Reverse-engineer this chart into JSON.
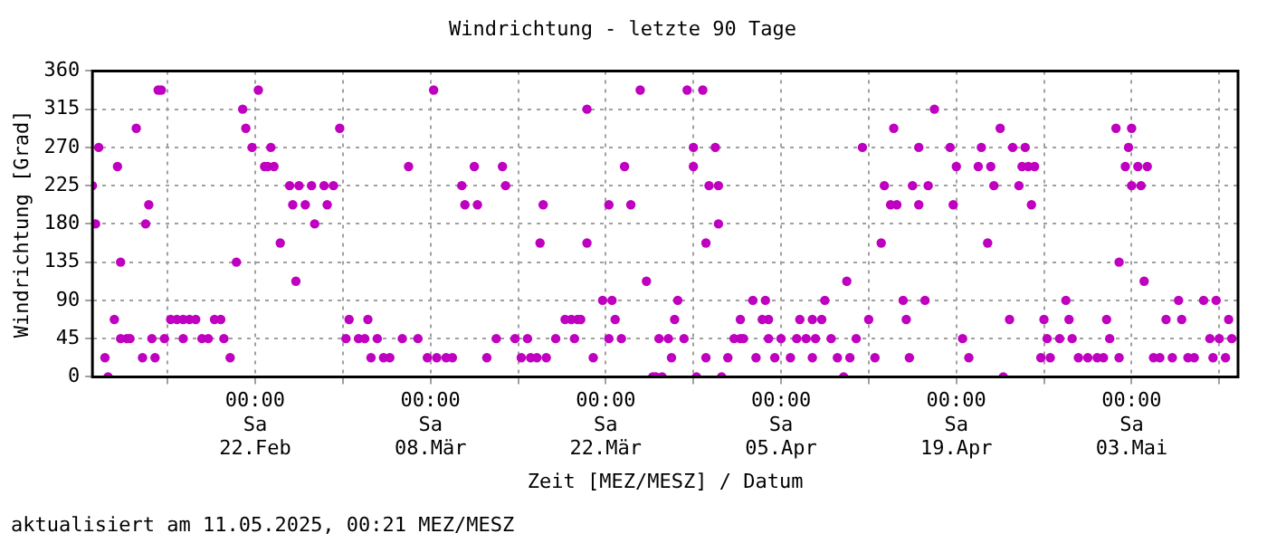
{
  "chart_data": {
    "type": "scatter",
    "title": "Windrichtung - letzte 90 Tage",
    "xlabel": "Zeit [MEZ/MESZ] / Datum",
    "ylabel": "Windrichtung [Grad]",
    "annotations": [
      "aktualisiert am 11.05.2025, 00:21 MEZ/MESZ"
    ],
    "x": [
      "2025-02-09T00:00",
      "2025-02-09T06:00",
      "2025-02-09T12:00",
      "2025-02-10T00:00",
      "2025-02-10T06:00",
      "2025-02-10T18:00",
      "2025-02-11T00:00",
      "2025-02-11T06:00",
      "2025-02-11T06:00",
      "2025-02-11T18:00",
      "2025-02-12T00:00",
      "2025-02-12T12:00",
      "2025-02-13T00:00",
      "2025-02-13T06:00",
      "2025-02-13T12:00",
      "2025-02-13T18:00",
      "2025-02-14T00:00",
      "2025-02-14T06:00",
      "2025-02-14T12:00",
      "2025-02-14T18:00",
      "2025-02-15T06:00",
      "2025-02-15T18:00",
      "2025-02-16T06:00",
      "2025-02-16T06:00",
      "2025-02-16T18:00",
      "2025-02-17T06:00",
      "2025-02-17T18:00",
      "2025-02-18T06:00",
      "2025-02-18T18:00",
      "2025-02-19T06:00",
      "2025-02-19T12:00",
      "2025-02-20T00:00",
      "2025-02-20T12:00",
      "2025-02-21T00:00",
      "2025-02-21T06:00",
      "2025-02-21T18:00",
      "2025-02-22T06:00",
      "2025-02-22T18:00",
      "2025-02-23T00:00",
      "2025-02-23T06:00",
      "2025-02-23T12:00",
      "2025-02-24T00:00",
      "2025-02-24T18:00",
      "2025-02-25T00:00",
      "2025-02-25T06:00",
      "2025-02-25T12:00",
      "2025-02-26T00:00",
      "2025-02-26T12:00",
      "2025-02-26T18:00",
      "2025-02-27T12:00",
      "2025-02-27T18:00",
      "2025-02-28T06:00",
      "2025-02-28T18:00",
      "2025-03-01T06:00",
      "2025-03-01T12:00",
      "2025-03-02T06:00",
      "2025-03-02T18:00",
      "2025-03-03T00:00",
      "2025-03-03T06:00",
      "2025-03-03T18:00",
      "2025-03-04T06:00",
      "2025-03-04T18:00",
      "2025-03-05T18:00",
      "2025-03-06T06:00",
      "2025-03-07T00:00",
      "2025-03-07T18:00",
      "2025-03-08T06:00",
      "2025-03-08T12:00",
      "2025-03-09T06:00",
      "2025-03-09T18:00",
      "2025-03-10T12:00",
      "2025-03-10T18:00",
      "2025-03-11T12:00",
      "2025-03-11T18:00",
      "2025-03-12T12:00",
      "2025-03-13T06:00",
      "2025-03-13T18:00",
      "2025-03-14T00:00",
      "2025-03-14T18:00",
      "2025-03-15T06:00",
      "2025-03-15T18:00",
      "2025-03-16T00:00",
      "2025-03-16T12:00",
      "2025-03-16T18:00",
      "2025-03-17T00:00",
      "2025-03-17T06:00",
      "2025-03-18T00:00",
      "2025-03-18T18:00",
      "2025-03-19T06:00",
      "2025-03-19T12:00",
      "2025-03-19T18:00",
      "2025-03-20T00:00",
      "2025-03-20T12:00",
      "2025-03-20T12:00",
      "2025-03-21T00:00",
      "2025-03-21T18:00",
      "2025-03-22T06:00",
      "2025-03-22T06:00",
      "2025-03-22T12:00",
      "2025-03-22T18:00",
      "2025-03-23T06:00",
      "2025-03-23T12:00",
      "2025-03-24T00:00",
      "2025-03-24T18:00",
      "2025-03-25T06:00",
      "2025-03-25T18:00",
      "2025-03-26T00:00",
      "2025-03-26T06:00",
      "2025-03-26T12:00",
      "2025-03-27T00:00",
      "2025-03-27T06:00",
      "2025-03-27T12:00",
      "2025-03-27T18:00",
      "2025-03-28T06:00",
      "2025-03-28T12:00",
      "2025-03-29T00:00",
      "2025-03-29T00:00",
      "2025-03-29T06:00",
      "2025-03-29T18:00",
      "2025-03-30T00:00",
      "2025-03-30T00:00",
      "2025-03-30T06:00",
      "2025-03-30T18:00",
      "2025-03-31T00:00",
      "2025-03-31T00:00",
      "2025-03-31T06:00",
      "2025-03-31T18:00",
      "2025-04-01T06:00",
      "2025-04-01T18:00",
      "2025-04-01T18:00",
      "2025-04-02T00:00",
      "2025-04-02T18:00",
      "2025-04-03T00:00",
      "2025-04-03T12:00",
      "2025-04-03T18:00",
      "2025-04-04T00:00",
      "2025-04-04T00:00",
      "2025-04-04T12:00",
      "2025-04-05T00:00",
      "2025-04-05T18:00",
      "2025-04-06T06:00",
      "2025-04-06T12:00",
      "2025-04-07T00:00",
      "2025-04-07T12:00",
      "2025-04-07T12:00",
      "2025-04-07T18:00",
      "2025-04-08T06:00",
      "2025-04-08T12:00",
      "2025-04-09T00:00",
      "2025-04-09T12:00",
      "2025-04-10T00:00",
      "2025-04-10T06:00",
      "2025-04-10T12:00",
      "2025-04-11T00:00",
      "2025-04-11T12:00",
      "2025-04-12T00:00",
      "2025-04-12T12:00",
      "2025-04-13T00:00",
      "2025-04-13T06:00",
      "2025-04-13T18:00",
      "2025-04-14T00:00",
      "2025-04-14T06:00",
      "2025-04-14T18:00",
      "2025-04-15T00:00",
      "2025-04-15T06:00",
      "2025-04-15T12:00",
      "2025-04-16T00:00",
      "2025-04-16T00:00",
      "2025-04-16T12:00",
      "2025-04-16T18:00",
      "2025-04-17T06:00",
      "2025-04-18T12:00",
      "2025-04-18T18:00",
      "2025-04-19T00:00",
      "2025-04-19T12:00",
      "2025-04-20T00:00",
      "2025-04-20T18:00",
      "2025-04-21T00:00",
      "2025-04-21T12:00",
      "2025-04-21T18:00",
      "2025-04-22T00:00",
      "2025-04-22T12:00",
      "2025-04-22T18:00",
      "2025-04-23T06:00",
      "2025-04-23T12:00",
      "2025-04-24T00:00",
      "2025-04-24T06:00",
      "2025-04-24T12:00",
      "2025-04-24T18:00",
      "2025-04-25T00:00",
      "2025-04-25T06:00",
      "2025-04-25T18:00",
      "2025-04-26T00:00",
      "2025-04-26T06:00",
      "2025-04-26T12:00",
      "2025-04-27T06:00",
      "2025-04-27T18:00",
      "2025-04-28T00:00",
      "2025-04-28T06:00",
      "2025-04-28T18:00",
      "2025-04-29T12:00",
      "2025-04-30T06:00",
      "2025-04-30T18:00",
      "2025-05-01T00:00",
      "2025-05-01T06:00",
      "2025-05-01T18:00",
      "2025-05-02T00:00",
      "2025-05-02T00:00",
      "2025-05-02T12:00",
      "2025-05-02T18:00",
      "2025-05-03T00:00",
      "2025-05-03T00:00",
      "2025-05-03T12:00",
      "2025-05-03T18:00",
      "2025-05-04T00:00",
      "2025-05-04T06:00",
      "2025-05-04T18:00",
      "2025-05-05T06:00",
      "2025-05-05T18:00",
      "2025-05-06T06:00",
      "2025-05-06T18:00",
      "2025-05-07T00:00",
      "2025-05-07T12:00",
      "2025-05-08T00:00",
      "2025-05-08T18:00",
      "2025-05-09T06:00",
      "2025-05-09T12:00",
      "2025-05-09T18:00",
      "2025-05-10T00:00",
      "2025-05-10T12:00",
      "2025-05-10T18:00",
      "2025-05-11T00:00"
    ],
    "values": [
      225,
      180,
      270,
      22.5,
      0,
      67.5,
      247.5,
      135,
      45,
      45,
      45,
      292.5,
      22.5,
      180,
      202.5,
      45,
      22.5,
      337.5,
      337.5,
      45,
      67.5,
      67.5,
      67.5,
      45,
      67.5,
      67.5,
      45,
      45,
      67.5,
      67.5,
      45,
      22.5,
      135,
      315,
      292.5,
      270,
      337.5,
      247.5,
      247.5,
      270,
      247.5,
      157.5,
      225,
      202.5,
      112.5,
      225,
      202.5,
      225,
      180,
      225,
      202.5,
      225,
      292.5,
      45,
      67.5,
      45,
      45,
      67.5,
      22.5,
      45,
      22.5,
      22.5,
      45,
      247.5,
      45,
      22.5,
      337.5,
      22.5,
      22.5,
      22.5,
      225,
      202.5,
      247.5,
      202.5,
      22.5,
      45,
      247.5,
      225,
      45,
      22.5,
      45,
      22.5,
      22.5,
      157.5,
      202.5,
      22.5,
      45,
      67.5,
      67.5,
      45,
      67.5,
      67.5,
      157.5,
      315,
      22.5,
      90,
      45,
      202.5,
      90,
      67.5,
      45,
      247.5,
      202.5,
      337.5,
      112.5,
      0,
      0,
      45,
      0,
      45,
      22.5,
      67.5,
      90,
      45,
      337.5,
      270,
      247.5,
      0,
      337.5,
      22.5,
      157.5,
      225,
      270,
      225,
      180,
      0,
      22.5,
      45,
      45,
      67.5,
      45,
      90,
      22.5,
      67.5,
      90,
      67.5,
      45,
      22.5,
      45,
      22.5,
      45,
      67.5,
      45,
      22.5,
      67.5,
      45,
      67.5,
      90,
      45,
      22.5,
      0,
      112.5,
      22.5,
      45,
      270,
      67.5,
      22.5,
      157.5,
      225,
      202.5,
      292.5,
      202.5,
      90,
      67.5,
      22.5,
      225,
      270,
      202.5,
      90,
      225,
      315,
      270,
      202.5,
      247.5,
      45,
      22.5,
      247.5,
      270,
      157.5,
      247.5,
      225,
      292.5,
      0,
      67.5,
      270,
      225,
      247.5,
      270,
      247.5,
      202.5,
      247.5,
      22.5,
      67.5,
      45,
      22.5,
      45,
      90,
      67.5,
      45,
      22.5,
      22.5,
      22.5,
      22.5,
      67.5,
      45,
      292.5,
      22.5,
      135,
      247.5,
      270,
      292.5,
      225,
      247.5,
      225,
      112.5,
      247.5,
      22.5,
      22.5,
      67.5,
      22.5,
      90,
      67.5,
      22.5,
      22.5,
      90,
      45,
      22.5,
      90,
      45,
      22.5,
      67.5,
      45
    ],
    "color": "#c000c0",
    "marker": "circle",
    "xlim": [
      "2025-02-09T00:00",
      "2025-05-11T12:00"
    ],
    "xticks": [
      {
        "value": "2025-02-15",
        "label": null
      },
      {
        "value": "2025-02-22",
        "label": "00:00\nSa\n22.Feb"
      },
      {
        "value": "2025-03-01",
        "label": null
      },
      {
        "value": "2025-03-08",
        "label": "00:00\nSa\n08.Mär"
      },
      {
        "value": "2025-03-15",
        "label": null
      },
      {
        "value": "2025-03-22",
        "label": "00:00\nSa\n22.Mär"
      },
      {
        "value": "2025-03-29",
        "label": null
      },
      {
        "value": "2025-04-05",
        "label": "00:00\nSa\n05.Apr"
      },
      {
        "value": "2025-04-12",
        "label": null
      },
      {
        "value": "2025-04-19",
        "label": "00:00\nSa\n19.Apr"
      },
      {
        "value": "2025-04-26",
        "label": null
      },
      {
        "value": "2025-05-03",
        "label": "00:00\nSa\n03.Mai"
      },
      {
        "value": "2025-05-10",
        "label": null
      }
    ],
    "ylim": [
      0,
      360
    ],
    "yticks": [
      0,
      45,
      90,
      135,
      180,
      225,
      270,
      315,
      360
    ],
    "grid": true,
    "legend": false
  }
}
